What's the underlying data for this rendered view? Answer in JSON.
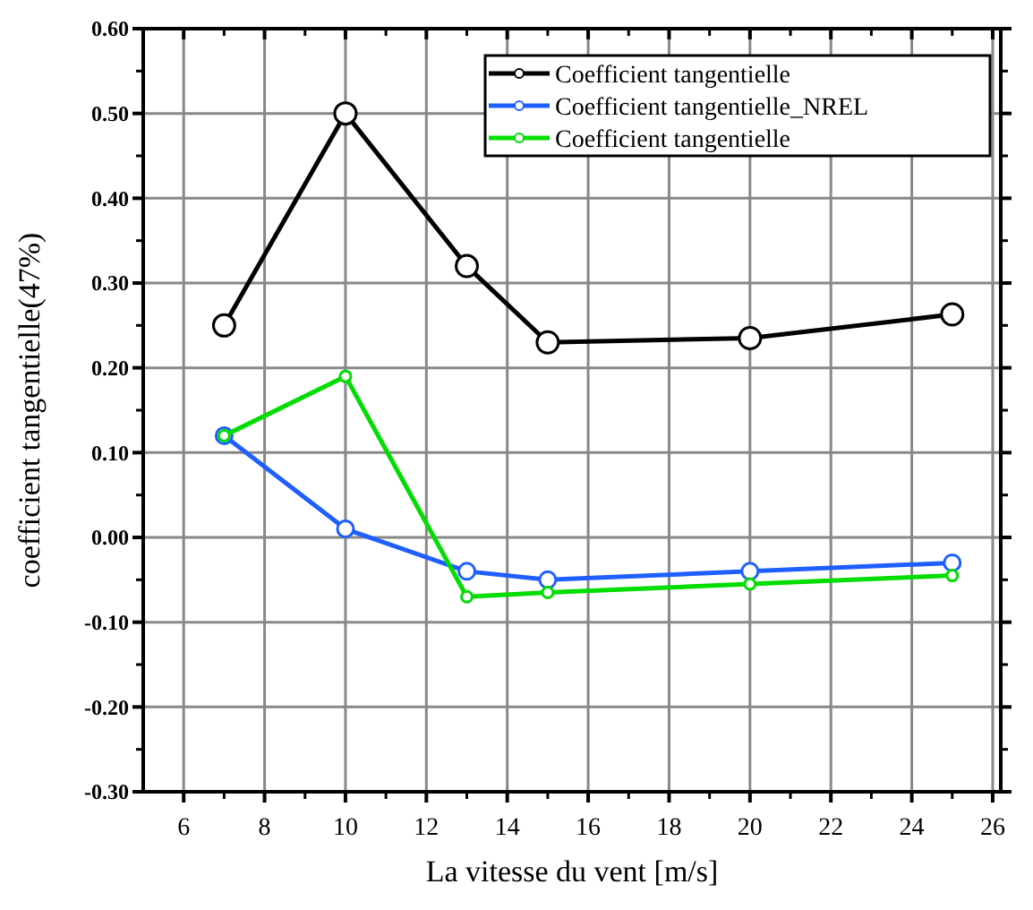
{
  "chart_data": {
    "type": "line",
    "xlabel": "La vitesse du vent [m/s]",
    "ylabel": "coefficient tangentielle(47%)",
    "xlim": [
      5,
      26.2
    ],
    "ylim": [
      -0.3,
      0.6
    ],
    "xticks": [
      6,
      8,
      10,
      12,
      14,
      16,
      18,
      20,
      22,
      24,
      26
    ],
    "yticks": [
      {
        "value": -0.3,
        "label": "-0.30"
      },
      {
        "value": -0.2,
        "label": "-0.20"
      },
      {
        "value": -0.1,
        "label": "-0.10"
      },
      {
        "value": 0,
        "label": "0.00"
      },
      {
        "value": 0.1,
        "label": "0.10"
      },
      {
        "value": 0.2,
        "label": "0.20"
      },
      {
        "value": 0.3,
        "label": "0.30"
      },
      {
        "value": 0.4,
        "label": "0.40"
      },
      {
        "value": 0.5,
        "label": "0.50"
      },
      {
        "value": 0.6,
        "label": "0.60"
      }
    ],
    "x": [
      7,
      10,
      13,
      15,
      20,
      25
    ],
    "series": [
      {
        "name": "Coefficient tangentielle",
        "color": "#000000",
        "values": [
          0.25,
          0.5,
          0.32,
          0.23,
          0.235,
          0.263
        ]
      },
      {
        "name": "Coefficient tangentielle_NREL",
        "color": "#1f5fff",
        "values": [
          0.12,
          0.01,
          -0.04,
          -0.05,
          -0.04,
          -0.03
        ]
      },
      {
        "name": "Coefficient tangentielle",
        "color": "#00dd00",
        "values": [
          0.12,
          0.19,
          -0.07,
          -0.065,
          -0.055,
          -0.045
        ]
      }
    ],
    "grid": true,
    "legend": "top right",
    "marker": "circle",
    "line_style": "solid"
  }
}
